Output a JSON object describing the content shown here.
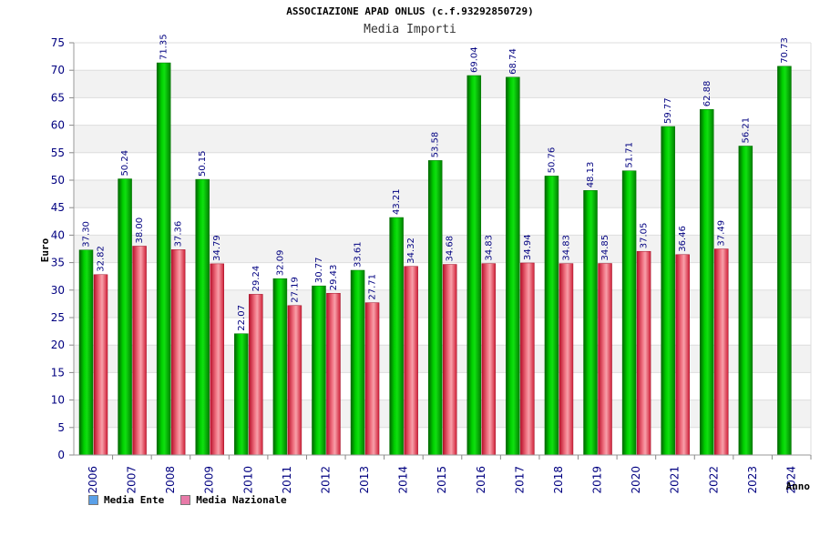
{
  "header": {
    "title": "ASSOCIAZIONE APAD ONLUS (c.f.93292850729)",
    "subtitle": "Media Importi"
  },
  "legend": {
    "items": [
      {
        "label": "Media Ente",
        "color": "#5aa0e8"
      },
      {
        "label": "Media Nazionale",
        "color": "#e87aa8"
      }
    ]
  },
  "chart_data": {
    "type": "bar",
    "title": "ASSOCIAZIONE APAD ONLUS (c.f.93292850729)",
    "subtitle": "Media Importi",
    "xlabel": "Anno",
    "ylabel": "Euro",
    "ylim": [
      0,
      75
    ],
    "yticks": [
      0,
      5,
      10,
      15,
      20,
      25,
      30,
      35,
      40,
      45,
      50,
      55,
      60,
      65,
      70,
      75
    ],
    "grid": true,
    "legend_position": "bottom-left",
    "categories": [
      "2006",
      "2007",
      "2008",
      "2009",
      "2010",
      "2011",
      "2012",
      "2013",
      "2014",
      "2015",
      "2016",
      "2017",
      "2018",
      "2019",
      "2020",
      "2021",
      "2022",
      "2023",
      "2024"
    ],
    "series": [
      {
        "name": "Media Ente",
        "color": "#00b400",
        "values": [
          37.3,
          50.24,
          71.35,
          50.15,
          22.07,
          32.09,
          30.77,
          33.61,
          43.21,
          53.58,
          69.04,
          68.74,
          50.76,
          48.13,
          51.71,
          59.77,
          62.88,
          56.21,
          70.73
        ],
        "labels": [
          "37.30",
          "50.24",
          "71.35",
          "50.15",
          "22.07",
          "32.09",
          "30.77",
          "33.61",
          "43.21",
          "53.58",
          "69.04",
          "68.74",
          "50.76",
          "48.13",
          "51.71",
          "59.77",
          "62.88",
          "56.21",
          "70.73"
        ]
      },
      {
        "name": "Media Nazionale",
        "color": "#e8243c",
        "values": [
          32.82,
          38.0,
          37.36,
          34.79,
          29.24,
          27.19,
          29.43,
          27.71,
          34.32,
          34.68,
          34.83,
          34.94,
          34.83,
          34.85,
          37.05,
          36.46,
          37.49,
          null,
          null
        ],
        "labels": [
          "32.82",
          "38.00",
          "37.36",
          "34.79",
          "29.24",
          "27.19",
          "29.43",
          "27.71",
          "34.32",
          "34.68",
          "34.83",
          "34.94",
          "34.83",
          "34.85",
          "37.05",
          "36.46",
          "37.49",
          null,
          null
        ]
      }
    ]
  }
}
